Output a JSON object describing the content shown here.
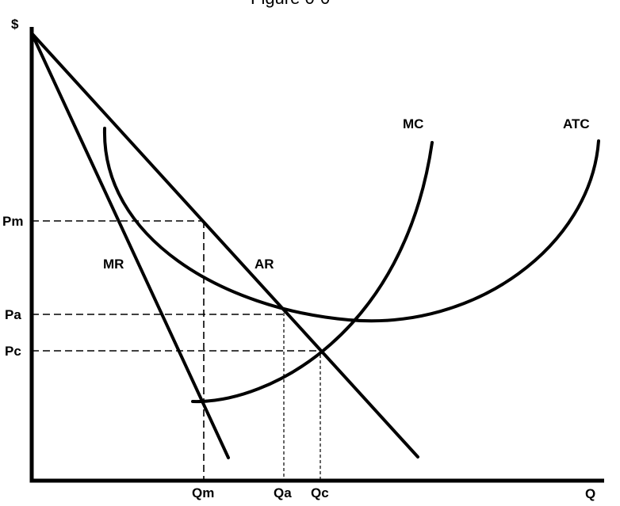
{
  "figure": {
    "title": "Figure 0-0",
    "y_axis_label": "$",
    "x_axis_label": "Q",
    "price_labels": {
      "pm": "Pm",
      "pa": "Pa",
      "pc": "Pc"
    },
    "quantity_labels": {
      "qm": "Qm",
      "qa": "Qa",
      "qc": "Qc"
    },
    "curve_labels": {
      "mr": "MR",
      "ar": "AR",
      "mc": "MC",
      "atc": "ATC"
    }
  }
}
